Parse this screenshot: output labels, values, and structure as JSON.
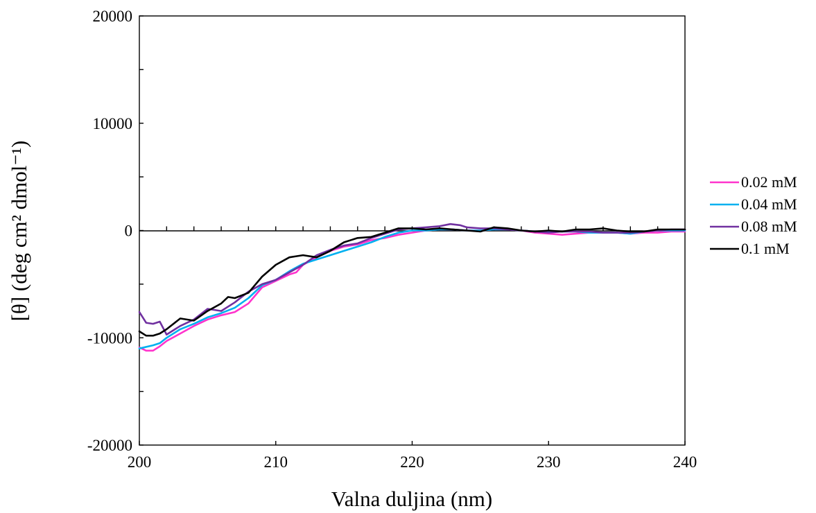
{
  "chart_data": {
    "type": "line",
    "title": "",
    "xlabel": "Valna duljina (nm)",
    "ylabel": "[θ] (deg cm² dmol⁻¹)",
    "xlim": [
      200,
      240
    ],
    "ylim": [
      -20000,
      20000
    ],
    "x_ticks": [
      "200",
      "210",
      "220",
      "230",
      "240"
    ],
    "y_ticks": [
      "-20000",
      "-10000",
      "0",
      "10000",
      "20000"
    ],
    "grid": false,
    "legend_position": "right",
    "series": [
      {
        "name": "0.02 mM",
        "color": "#ff33cc",
        "points": [
          [
            200,
            -10900
          ],
          [
            200.5,
            -11200
          ],
          [
            201,
            -11200
          ],
          [
            201.5,
            -10800
          ],
          [
            202,
            -10300
          ],
          [
            203,
            -9600
          ],
          [
            204,
            -8900
          ],
          [
            205,
            -8300
          ],
          [
            206,
            -7900
          ],
          [
            207,
            -7600
          ],
          [
            208,
            -6800
          ],
          [
            209,
            -5300
          ],
          [
            210,
            -4700
          ],
          [
            211,
            -4100
          ],
          [
            211.5,
            -3900
          ],
          [
            212,
            -3200
          ],
          [
            213,
            -2500
          ],
          [
            214,
            -1900
          ],
          [
            215,
            -1500
          ],
          [
            216,
            -1300
          ],
          [
            217,
            -900
          ],
          [
            218,
            -700
          ],
          [
            219,
            -400
          ],
          [
            220,
            -200
          ],
          [
            221,
            0
          ],
          [
            222,
            100
          ],
          [
            223,
            100
          ],
          [
            224,
            0
          ],
          [
            225,
            0
          ],
          [
            226,
            100
          ],
          [
            227,
            100
          ],
          [
            228,
            0
          ],
          [
            229,
            -200
          ],
          [
            230,
            -300
          ],
          [
            231,
            -400
          ],
          [
            232,
            -300
          ],
          [
            233,
            -200
          ],
          [
            234,
            -200
          ],
          [
            235,
            -200
          ],
          [
            236,
            -300
          ],
          [
            237,
            -200
          ],
          [
            238,
            -200
          ],
          [
            239,
            -100
          ],
          [
            240,
            -100
          ]
        ]
      },
      {
        "name": "0.04 mM",
        "color": "#00b0f0",
        "points": [
          [
            200,
            -11000
          ],
          [
            201,
            -10700
          ],
          [
            201.5,
            -10500
          ],
          [
            202,
            -10000
          ],
          [
            203,
            -9200
          ],
          [
            204,
            -8700
          ],
          [
            205,
            -8100
          ],
          [
            206,
            -7700
          ],
          [
            207,
            -7200
          ],
          [
            208,
            -6300
          ],
          [
            209,
            -5100
          ],
          [
            210,
            -4600
          ],
          [
            211,
            -3800
          ],
          [
            212,
            -3100
          ],
          [
            213,
            -2700
          ],
          [
            214,
            -2300
          ],
          [
            215,
            -1900
          ],
          [
            216,
            -1500
          ],
          [
            217,
            -1100
          ],
          [
            218,
            -600
          ],
          [
            219,
            -200
          ],
          [
            220,
            0
          ],
          [
            221,
            0
          ],
          [
            222,
            100
          ],
          [
            223,
            100
          ],
          [
            224,
            0
          ],
          [
            225,
            0
          ],
          [
            226,
            100
          ],
          [
            227,
            100
          ],
          [
            228,
            0
          ],
          [
            229,
            -100
          ],
          [
            230,
            -100
          ],
          [
            231,
            -100
          ],
          [
            232,
            -100
          ],
          [
            233,
            -200
          ],
          [
            234,
            -200
          ],
          [
            235,
            -200
          ],
          [
            236,
            -300
          ],
          [
            237,
            -100
          ],
          [
            238,
            0
          ],
          [
            239,
            0
          ],
          [
            240,
            0
          ]
        ]
      },
      {
        "name": "0.08 mM",
        "color": "#7030a0",
        "points": [
          [
            200,
            -7600
          ],
          [
            200.5,
            -8600
          ],
          [
            201,
            -8700
          ],
          [
            201.5,
            -8500
          ],
          [
            202,
            -9700
          ],
          [
            203,
            -8900
          ],
          [
            204,
            -8300
          ],
          [
            205,
            -7300
          ],
          [
            206,
            -7500
          ],
          [
            207,
            -6700
          ],
          [
            208,
            -5700
          ],
          [
            209,
            -5000
          ],
          [
            210,
            -4600
          ],
          [
            211,
            -3900
          ],
          [
            212,
            -3200
          ],
          [
            213,
            -2300
          ],
          [
            214,
            -1800
          ],
          [
            215,
            -1400
          ],
          [
            216,
            -1200
          ],
          [
            217,
            -700
          ],
          [
            218,
            -300
          ],
          [
            219,
            100
          ],
          [
            220,
            200
          ],
          [
            221,
            300
          ],
          [
            222,
            400
          ],
          [
            222.8,
            600
          ],
          [
            223.5,
            500
          ],
          [
            224,
            300
          ],
          [
            225,
            200
          ],
          [
            226,
            200
          ],
          [
            227,
            100
          ],
          [
            228,
            0
          ],
          [
            229,
            -100
          ],
          [
            230,
            -200
          ],
          [
            231,
            -100
          ],
          [
            232,
            -100
          ],
          [
            233,
            -100
          ],
          [
            234,
            -200
          ],
          [
            235,
            -200
          ],
          [
            236,
            -200
          ],
          [
            237,
            -100
          ],
          [
            238,
            0
          ],
          [
            239,
            100
          ],
          [
            240,
            100
          ]
        ]
      },
      {
        "name": "0.1 mM",
        "color": "#000000",
        "points": [
          [
            200,
            -9400
          ],
          [
            200.5,
            -9800
          ],
          [
            201,
            -9800
          ],
          [
            201.5,
            -9600
          ],
          [
            202,
            -9200
          ],
          [
            203,
            -8200
          ],
          [
            204,
            -8400
          ],
          [
            205,
            -7500
          ],
          [
            206,
            -6800
          ],
          [
            206.5,
            -6200
          ],
          [
            207,
            -6300
          ],
          [
            208,
            -5800
          ],
          [
            209,
            -4300
          ],
          [
            210,
            -3200
          ],
          [
            211,
            -2500
          ],
          [
            211.5,
            -2400
          ],
          [
            212,
            -2300
          ],
          [
            213,
            -2500
          ],
          [
            214,
            -1900
          ],
          [
            215,
            -1100
          ],
          [
            216,
            -700
          ],
          [
            217,
            -600
          ],
          [
            218,
            -200
          ],
          [
            219,
            200
          ],
          [
            220,
            200
          ],
          [
            221,
            100
          ],
          [
            222,
            200
          ],
          [
            223,
            100
          ],
          [
            224,
            0
          ],
          [
            225,
            -100
          ],
          [
            226,
            300
          ],
          [
            227,
            200
          ],
          [
            228,
            0
          ],
          [
            229,
            -100
          ],
          [
            230,
            0
          ],
          [
            231,
            -100
          ],
          [
            232,
            100
          ],
          [
            233,
            100
          ],
          [
            234,
            200
          ],
          [
            235,
            0
          ],
          [
            236,
            -100
          ],
          [
            237,
            -100
          ],
          [
            238,
            100
          ],
          [
            239,
            100
          ],
          [
            240,
            100
          ]
        ]
      }
    ]
  }
}
